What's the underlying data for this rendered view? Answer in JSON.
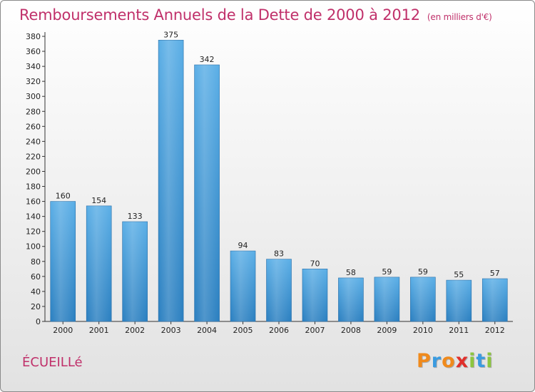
{
  "header": {
    "title": "Remboursements Annuels de la Dette de 2000 à 2012",
    "subtitle": "(en milliers d'€)"
  },
  "footer": {
    "city": "ÉCUEILLé",
    "logo_text": "Proxiti"
  },
  "colors": {
    "title": "#c0306a",
    "bar_top": "#5aaee6",
    "bar_bottom": "#2a7fc0",
    "logo_letters": [
      "#f08a1c",
      "#3a9be0",
      "#f08a1c",
      "#e0302c",
      "#8cc63f",
      "#3a9be0",
      "#8cc63f"
    ]
  },
  "chart_data": {
    "type": "bar",
    "title": "Remboursements Annuels de la Dette de 2000 à 2012",
    "subtitle": "(en milliers d'€)",
    "categories": [
      "2000",
      "2001",
      "2002",
      "2003",
      "2004",
      "2005",
      "2006",
      "2007",
      "2008",
      "2009",
      "2010",
      "2011",
      "2012"
    ],
    "values": [
      160,
      154,
      133,
      375,
      342,
      94,
      83,
      70,
      58,
      59,
      59,
      55,
      57
    ],
    "ylim": [
      0,
      380
    ],
    "yticks": [
      0,
      20,
      40,
      60,
      80,
      100,
      120,
      140,
      160,
      180,
      200,
      220,
      240,
      260,
      280,
      300,
      320,
      340,
      360,
      380
    ],
    "grid": false,
    "legend": "none",
    "data_labels": true
  }
}
